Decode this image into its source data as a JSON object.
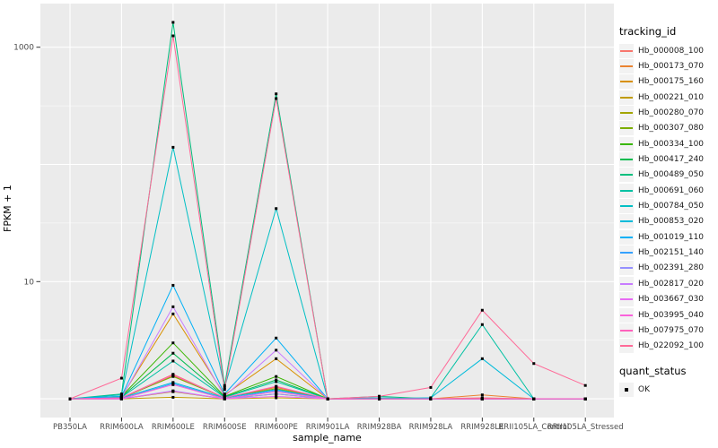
{
  "chart_data": {
    "type": "line",
    "xlabel": "sample_name",
    "ylabel": "FPKM + 1",
    "yscale": "log10",
    "ylim": [
      0.76,
      2100
    ],
    "grid": true,
    "legend_position": "right",
    "panel_bg": "#EBEBEB",
    "grid_color": "#FFFFFF",
    "point_color": "#000000",
    "axis_text_color": "#4D4D4D",
    "yticks": [
      {
        "value": 10,
        "label": "10"
      },
      {
        "value": 1000,
        "label": "1000"
      }
    ],
    "gridlines_major": [
      1,
      10,
      100,
      1000
    ],
    "gridlines_minor": [
      3.1623,
      31.623,
      316.23
    ],
    "categories": [
      "PB350LA",
      "RRIM600LA",
      "RRIM600LE",
      "RRIM600SE",
      "RRIM600PE",
      "RRIM901LA",
      "RRIM928BA",
      "RRIM928LA",
      "RRIM928LE",
      "RRII105LA_Control",
      "RRII105LA_Stressed"
    ],
    "series": [
      {
        "name": "Hb_000008_100",
        "color": "#F8766D",
        "values": [
          1.0,
          1.02,
          1.62,
          1.02,
          1.27,
          1.0,
          1.01,
          1.0,
          1.02,
          1.0,
          1.0
        ]
      },
      {
        "name": "Hb_000173_070",
        "color": "#EA8331",
        "values": [
          1.0,
          1.01,
          1.58,
          1.02,
          1.25,
          1.0,
          1.0,
          1.0,
          1.08,
          1.0,
          1.0
        ]
      },
      {
        "name": "Hb_000175_160",
        "color": "#D89000",
        "values": [
          1.0,
          1.04,
          5.3,
          1.08,
          2.2,
          1.0,
          1.0,
          1.0,
          1.0,
          1.0,
          1.0
        ]
      },
      {
        "name": "Hb_000221_010",
        "color": "#C09B00",
        "values": [
          1.0,
          1.0,
          1.03,
          1.0,
          1.02,
          1.0,
          1.0,
          1.0,
          1.0,
          1.0,
          1.0
        ]
      },
      {
        "name": "Hb_000280_070",
        "color": "#A3A500",
        "values": [
          1.0,
          1.0,
          1.15,
          1.0,
          1.1,
          1.0,
          1.0,
          1.0,
          1.0,
          1.0,
          1.0
        ]
      },
      {
        "name": "Hb_000307_080",
        "color": "#7CAE00",
        "values": [
          1.0,
          1.02,
          1.55,
          1.02,
          1.22,
          1.0,
          1.0,
          1.0,
          1.0,
          1.0,
          1.0
        ]
      },
      {
        "name": "Hb_000334_100",
        "color": "#39B600",
        "values": [
          1.0,
          1.05,
          3.0,
          1.05,
          1.55,
          1.0,
          1.0,
          1.0,
          1.0,
          1.0,
          1.0
        ]
      },
      {
        "name": "Hb_000417_240",
        "color": "#00BB4E",
        "values": [
          1.0,
          1.04,
          2.45,
          1.04,
          1.45,
          1.0,
          1.0,
          1.0,
          1.0,
          1.0,
          1.0
        ]
      },
      {
        "name": "Hb_000489_050",
        "color": "#00BF7D",
        "values": [
          1.0,
          1.1,
          1630,
          1.3,
          400,
          1.0,
          1.05,
          1.0,
          1.0,
          1.0,
          1.0
        ]
      },
      {
        "name": "Hb_000691_060",
        "color": "#00C1A3",
        "values": [
          1.0,
          1.03,
          2.1,
          1.03,
          1.4,
          1.0,
          1.0,
          1.02,
          4.3,
          1.0,
          1.0
        ]
      },
      {
        "name": "Hb_000784_050",
        "color": "#00BFC4",
        "values": [
          1.0,
          1.08,
          140,
          1.25,
          42,
          1.0,
          1.02,
          1.0,
          1.0,
          1.0,
          1.0
        ]
      },
      {
        "name": "Hb_000853_020",
        "color": "#00BBDA",
        "values": [
          1.0,
          1.02,
          1.38,
          1.02,
          1.2,
          1.0,
          1.0,
          1.02,
          2.2,
          1.0,
          1.0
        ]
      },
      {
        "name": "Hb_001019_110",
        "color": "#00B0F6",
        "values": [
          1.0,
          1.05,
          9.3,
          1.1,
          3.3,
          1.0,
          1.0,
          1.0,
          1.0,
          1.0,
          1.0
        ]
      },
      {
        "name": "Hb_002151_140",
        "color": "#35A2FF",
        "values": [
          1.0,
          1.0,
          1.35,
          1.0,
          1.18,
          1.0,
          1.0,
          1.0,
          1.0,
          1.0,
          1.0
        ]
      },
      {
        "name": "Hb_002391_280",
        "color": "#9590FF",
        "values": [
          1.0,
          1.0,
          1.17,
          1.0,
          1.1,
          1.0,
          1.0,
          1.0,
          1.0,
          1.0,
          1.0
        ]
      },
      {
        "name": "Hb_002817_020",
        "color": "#C77CFF",
        "values": [
          1.0,
          1.02,
          6.1,
          1.05,
          2.6,
          1.0,
          1.0,
          1.0,
          1.0,
          1.0,
          1.0
        ]
      },
      {
        "name": "Hb_003667_030",
        "color": "#E76BF3",
        "values": [
          1.0,
          1.0,
          1.16,
          1.0,
          1.05,
          1.0,
          1.0,
          1.0,
          1.0,
          1.0,
          1.0
        ]
      },
      {
        "name": "Hb_003995_040",
        "color": "#FA62DB",
        "values": [
          1.0,
          1.0,
          1.32,
          1.0,
          1.15,
          1.0,
          1.0,
          1.0,
          1.0,
          1.0,
          1.0
        ]
      },
      {
        "name": "Hb_007975_070",
        "color": "#FF62BC",
        "values": [
          1.0,
          1.02,
          1.6,
          1.02,
          1.28,
          1.0,
          1.0,
          1.0,
          1.0,
          1.0,
          1.0
        ]
      },
      {
        "name": "Hb_022092_100",
        "color": "#FF6A98",
        "values": [
          1.0,
          1.5,
          1250,
          1.2,
          365,
          1.0,
          1.05,
          1.25,
          5.7,
          2.0,
          1.3
        ]
      }
    ],
    "legend": {
      "tracking_title": "tracking_id",
      "quant_title": "quant_status",
      "quant_items": [
        {
          "label": "OK"
        }
      ]
    }
  }
}
